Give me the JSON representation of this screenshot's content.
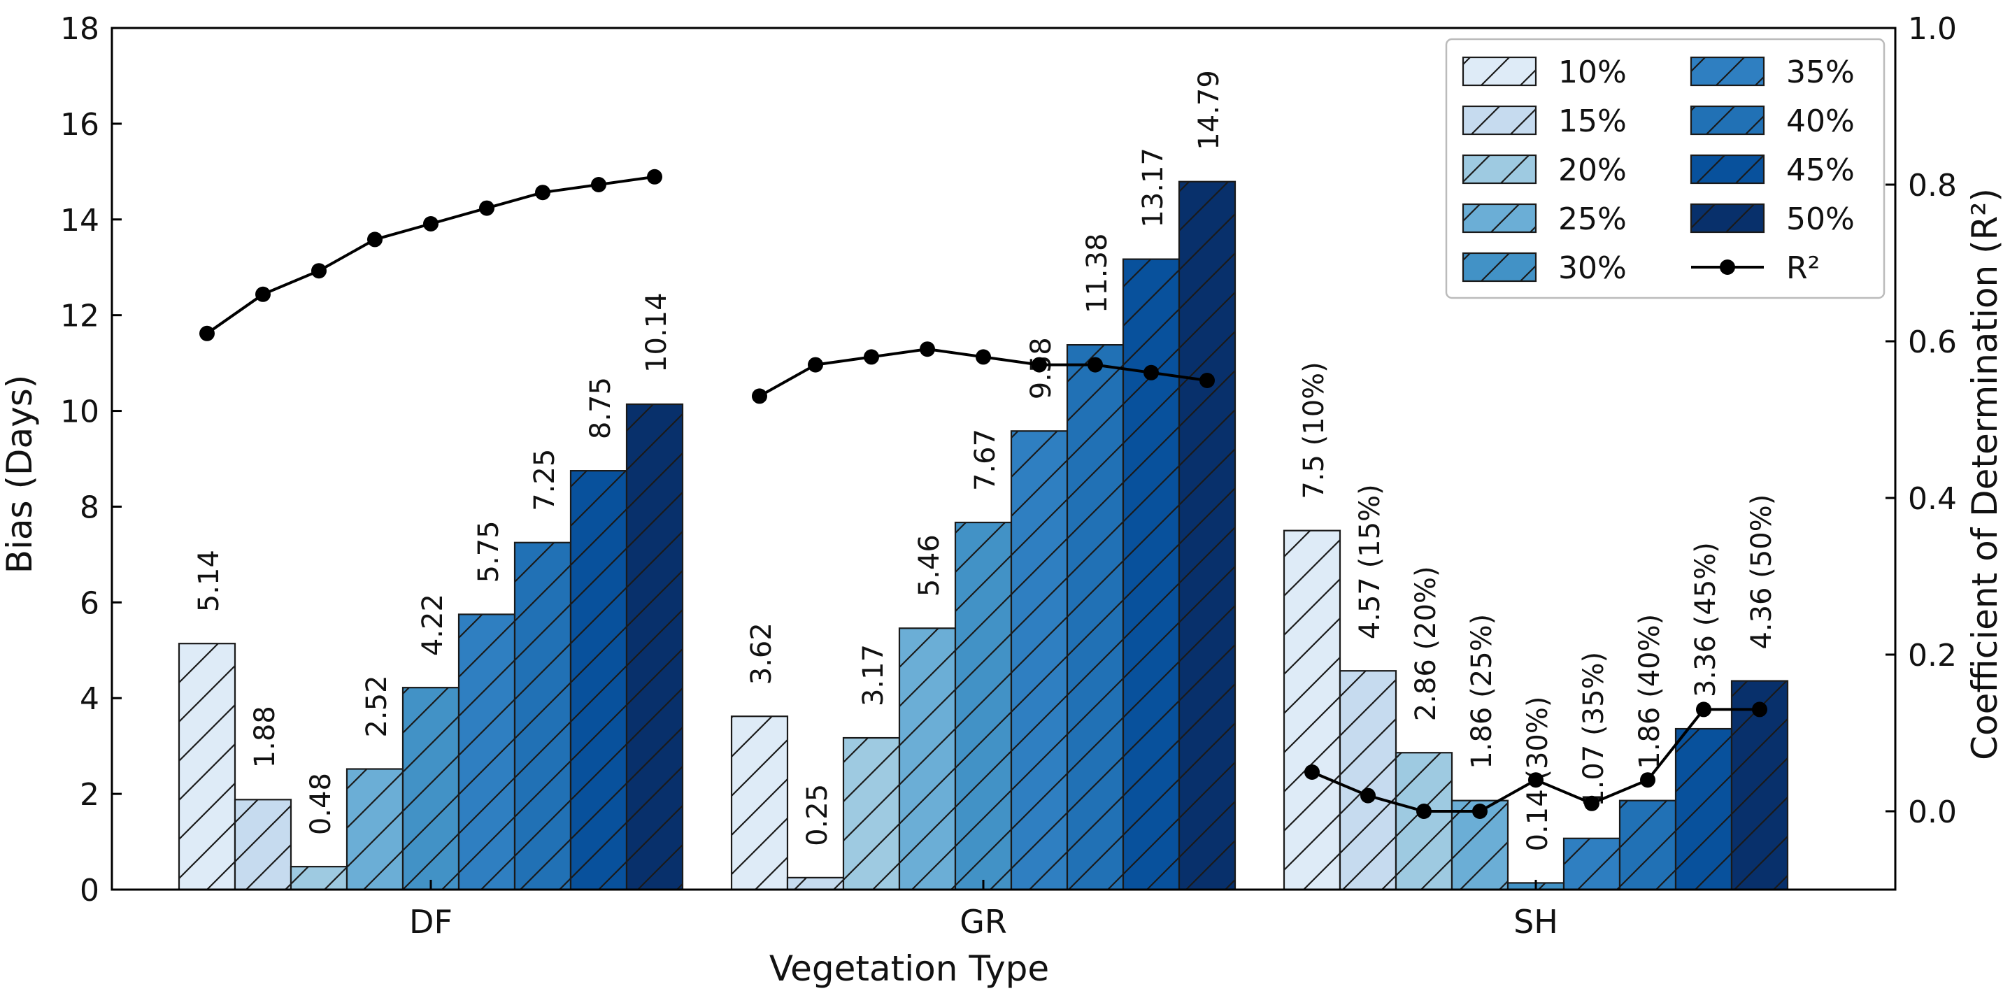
{
  "chart_data": {
    "type": "bar",
    "categories": [
      "DF",
      "GR",
      "SH"
    ],
    "xlabel": "Vegetation Type",
    "ylabel": "Bias (Days)",
    "y2label": "Coefficient of Determination (R²)",
    "ylim": [
      0,
      18
    ],
    "y2lim": [
      -0.1,
      1.0
    ],
    "yticks": [
      "0",
      "2",
      "4",
      "6",
      "8",
      "10",
      "12",
      "14",
      "16",
      "18"
    ],
    "y2ticks": [
      "0.0",
      "0.2",
      "0.4",
      "0.6",
      "0.8",
      "1.0"
    ],
    "legend_position": "top-right",
    "series": [
      {
        "name": "10%",
        "color": "#deebf7",
        "values": [
          5.14,
          3.62,
          7.5
        ]
      },
      {
        "name": "15%",
        "color": "#c6dbef",
        "values": [
          1.88,
          0.25,
          4.57
        ]
      },
      {
        "name": "20%",
        "color": "#9ecae1",
        "values": [
          0.48,
          3.17,
          2.86
        ]
      },
      {
        "name": "25%",
        "color": "#6baed6",
        "values": [
          2.52,
          5.46,
          1.86
        ]
      },
      {
        "name": "30%",
        "color": "#4292c6",
        "values": [
          4.22,
          7.67,
          0.14
        ]
      },
      {
        "name": "35%",
        "color": "#2f7fc1",
        "values": [
          5.75,
          9.58,
          1.07
        ]
      },
      {
        "name": "40%",
        "color": "#2171b5",
        "values": [
          7.25,
          11.38,
          1.86
        ]
      },
      {
        "name": "45%",
        "color": "#08519c",
        "values": [
          8.75,
          13.17,
          3.36
        ]
      },
      {
        "name": "50%",
        "color": "#08306b",
        "values": [
          10.14,
          14.79,
          4.36
        ]
      }
    ],
    "bar_labels": [
      [
        "5.14",
        "1.88",
        "0.48",
        "2.52",
        "4.22",
        "5.75",
        "7.25",
        "8.75",
        "10.14"
      ],
      [
        "3.62",
        "0.25",
        "3.17",
        "5.46",
        "7.67",
        "9.58",
        "11.38",
        "13.17",
        "14.79"
      ],
      [
        "7.5 (10%)",
        "4.57 (15%)",
        "2.86 (20%)",
        "1.86 (25%)",
        "0.14 (30%)",
        "1.07 (35%)",
        "1.86 (40%)",
        "3.36 (45%)",
        "4.36 (50%)"
      ]
    ],
    "r2_series": {
      "name": "R²",
      "values": [
        [
          0.61,
          0.66,
          0.69,
          0.73,
          0.75,
          0.77,
          0.79,
          0.8,
          0.81
        ],
        [
          0.53,
          0.57,
          0.58,
          0.59,
          0.58,
          0.57,
          0.57,
          0.56,
          0.55
        ],
        [
          0.05,
          0.02,
          0.0,
          0.0,
          0.04,
          0.01,
          0.04,
          0.13,
          0.13
        ]
      ]
    }
  }
}
